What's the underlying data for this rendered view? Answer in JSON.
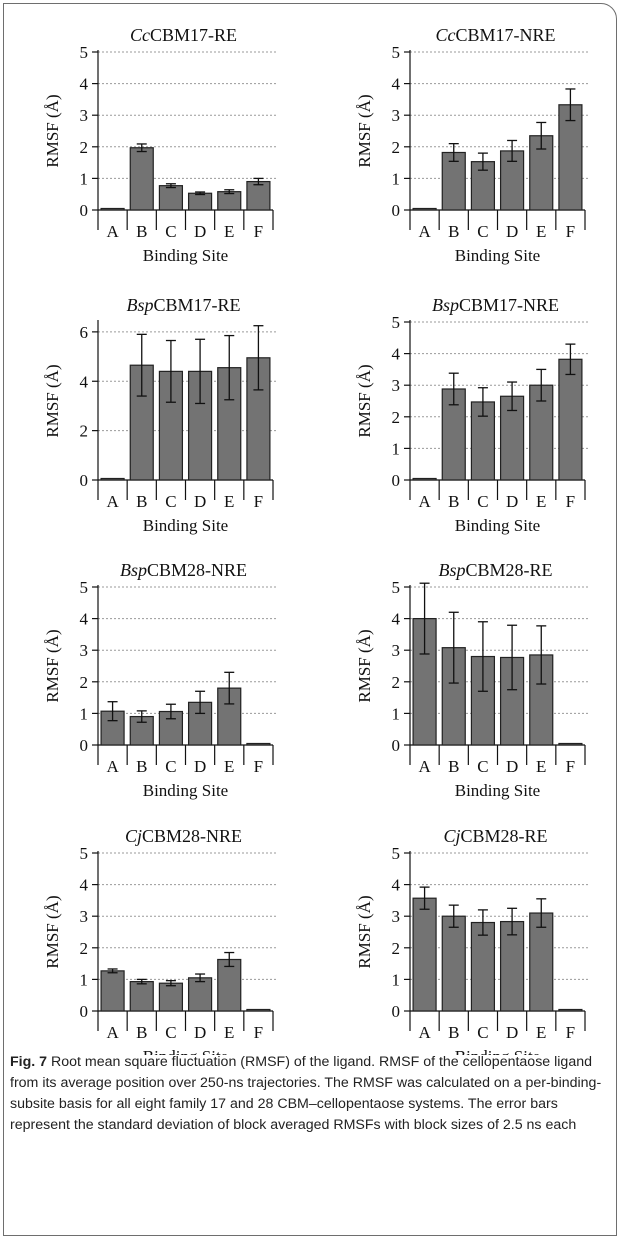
{
  "chart_data": [
    {
      "type": "bar",
      "title_prefix": "Cc",
      "title_suffix": "CBM17-RE",
      "xlabel": "Binding Site",
      "ylabel": "RMSF (Å)",
      "ylim": [
        0,
        5
      ],
      "yticks": [
        0,
        1,
        2,
        3,
        4,
        5
      ],
      "grid": "dotted horizontal",
      "categories": [
        "A",
        "B",
        "C",
        "D",
        "E",
        "F"
      ],
      "values": [
        0.02,
        1.97,
        0.77,
        0.53,
        0.58,
        0.9
      ],
      "errors": [
        0.0,
        0.12,
        0.06,
        0.04,
        0.06,
        0.1
      ]
    },
    {
      "type": "bar",
      "title_prefix": "Cc",
      "title_suffix": "CBM17-NRE",
      "xlabel": "Binding Site",
      "ylabel": "RMSF (Å)",
      "ylim": [
        0,
        5
      ],
      "yticks": [
        0,
        1,
        2,
        3,
        4,
        5
      ],
      "grid": "dotted horizontal",
      "categories": [
        "A",
        "B",
        "C",
        "D",
        "E",
        "F"
      ],
      "values": [
        0.02,
        1.82,
        1.53,
        1.87,
        2.35,
        3.33
      ],
      "errors": [
        0.0,
        0.28,
        0.27,
        0.33,
        0.42,
        0.5
      ]
    },
    {
      "type": "bar",
      "title_prefix": "Bsp",
      "title_suffix": "CBM17-RE",
      "xlabel": "Binding Site",
      "ylabel": "RMSF (Å)",
      "ylim": [
        0,
        6.4
      ],
      "yticks": [
        0,
        2,
        4,
        6
      ],
      "grid": "dotted horizontal",
      "categories": [
        "A",
        "B",
        "C",
        "D",
        "E",
        "F"
      ],
      "values": [
        0.02,
        4.65,
        4.4,
        4.4,
        4.55,
        4.95
      ],
      "errors": [
        0.0,
        1.25,
        1.25,
        1.3,
        1.3,
        1.3
      ]
    },
    {
      "type": "bar",
      "title_prefix": "Bsp",
      "title_suffix": "CBM17-NRE",
      "xlabel": "Binding Site",
      "ylabel": "RMSF (Å)",
      "ylim": [
        0,
        5
      ],
      "yticks": [
        0,
        1,
        2,
        3,
        4,
        5
      ],
      "grid": "dotted horizontal",
      "categories": [
        "A",
        "B",
        "C",
        "D",
        "E",
        "F"
      ],
      "values": [
        0.02,
        2.88,
        2.47,
        2.65,
        3.0,
        3.82
      ],
      "errors": [
        0.0,
        0.5,
        0.45,
        0.45,
        0.5,
        0.48
      ]
    },
    {
      "type": "bar",
      "title_prefix": "Bsp",
      "title_suffix": "CBM28-NRE",
      "xlabel": "Binding Site",
      "ylabel": "RMSF (Å)",
      "ylim": [
        0,
        5
      ],
      "yticks": [
        0,
        1,
        2,
        3,
        4,
        5
      ],
      "grid": "dotted horizontal",
      "categories": [
        "A",
        "B",
        "C",
        "D",
        "E",
        "F"
      ],
      "values": [
        1.07,
        0.9,
        1.06,
        1.35,
        1.8,
        0.02
      ],
      "errors": [
        0.3,
        0.18,
        0.23,
        0.35,
        0.5,
        0.0
      ]
    },
    {
      "type": "bar",
      "title_prefix": "Bsp",
      "title_suffix": "CBM28-RE",
      "xlabel": "Binding Site",
      "ylabel": "RMSF (Å)",
      "ylim": [
        0,
        5
      ],
      "yticks": [
        0,
        1,
        2,
        3,
        4,
        5
      ],
      "grid": "dotted horizontal",
      "categories": [
        "A",
        "B",
        "C",
        "D",
        "E",
        "F"
      ],
      "values": [
        4.0,
        3.08,
        2.8,
        2.77,
        2.85,
        0.02
      ],
      "errors": [
        1.12,
        1.12,
        1.1,
        1.02,
        0.92,
        0.0
      ]
    },
    {
      "type": "bar",
      "title_prefix": "Cj",
      "title_suffix": "CBM28-NRE",
      "xlabel": "Binding Site",
      "ylabel": "RMSF (Å)",
      "ylim": [
        0,
        5
      ],
      "yticks": [
        0,
        1,
        2,
        3,
        4,
        5
      ],
      "grid": "dotted horizontal",
      "categories": [
        "A",
        "B",
        "C",
        "D",
        "E",
        "F"
      ],
      "values": [
        1.27,
        0.93,
        0.88,
        1.05,
        1.63,
        0.02
      ],
      "errors": [
        0.06,
        0.07,
        0.08,
        0.12,
        0.22,
        0.0
      ]
    },
    {
      "type": "bar",
      "title_prefix": "Cj",
      "title_suffix": "CBM28-RE",
      "xlabel": "Binding Site",
      "ylabel": "RMSF (Å)",
      "ylim": [
        0,
        5
      ],
      "yticks": [
        0,
        1,
        2,
        3,
        4,
        5
      ],
      "grid": "dotted horizontal",
      "categories": [
        "A",
        "B",
        "C",
        "D",
        "E",
        "F"
      ],
      "values": [
        3.57,
        3.0,
        2.8,
        2.83,
        3.1,
        0.02
      ],
      "errors": [
        0.35,
        0.35,
        0.4,
        0.42,
        0.45,
        0.0
      ]
    }
  ],
  "caption": {
    "label": "Fig. 7",
    "text": "  Root mean square fluctuation (RMSF) of the ligand. RMSF of the cellopentaose ligand from its average position over 250-ns trajectories. The RMSF was calculated on a per-binding-subsite basis for all eight family 17 and 28 CBM–cellopentaose systems. The error bars represent the standard deviation of block averaged RMSFs with block sizes of 2.5 ns each"
  },
  "colors": {
    "bar_fill": "#737373",
    "bar_stroke": "#222222",
    "grid": "#9a9a9a",
    "frame": "#6e6e6e"
  }
}
